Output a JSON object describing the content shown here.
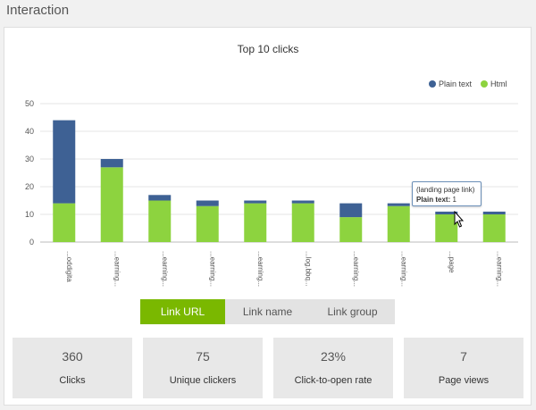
{
  "section_title": "Interaction",
  "chart_data": {
    "type": "bar",
    "stacked": true,
    "title": "Top 10 clicks",
    "categories": [
      "...oddigita",
      "...earning...",
      "...earning...",
      "...earning...",
      "...earning...",
      "...log.bbq...",
      "...earning...",
      "...earning...",
      "...page",
      "...earning..."
    ],
    "series": [
      {
        "name": "Html",
        "color": "#8dd33f",
        "values": [
          14,
          27,
          15,
          13,
          14,
          14,
          9,
          13,
          10,
          10
        ]
      },
      {
        "name": "Plain text",
        "color": "#3e6194",
        "values": [
          30,
          3,
          2,
          2,
          1,
          1,
          5,
          1,
          1,
          1
        ]
      }
    ],
    "ylim": [
      0,
      50
    ],
    "yticks": [
      0,
      10,
      20,
      30,
      40,
      50
    ],
    "grid": true,
    "legend": "top-right"
  },
  "tooltip": {
    "title": "(landing page link)",
    "label": "Plain text:",
    "value": "1"
  },
  "tabs": [
    {
      "label": "Link URL",
      "active": true
    },
    {
      "label": "Link name",
      "active": false
    },
    {
      "label": "Link group",
      "active": false
    }
  ],
  "stats": [
    {
      "value": "360",
      "label": "Clicks"
    },
    {
      "value": "75",
      "label": "Unique clickers"
    },
    {
      "value": "23%",
      "label": "Click-to-open rate"
    },
    {
      "value": "7",
      "label": "Page views"
    }
  ]
}
